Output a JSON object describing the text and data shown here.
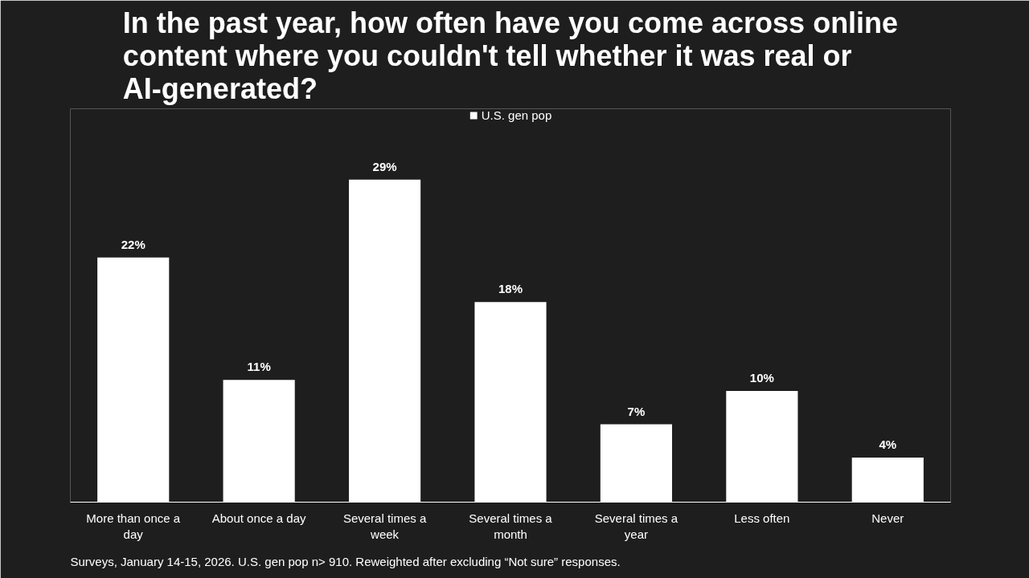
{
  "chart_data": {
    "type": "bar",
    "title": "In the past year, how often have you come across online content where you couldn't tell whether it was real or AI-generated?",
    "categories": [
      "More than once a day",
      "About once a day",
      "Several times a week",
      "Several times a month",
      "Several times a year",
      "Less often",
      "Never"
    ],
    "series": [
      {
        "name": "U.S. gen pop",
        "color": "#ffffff",
        "values": [
          22,
          11,
          29,
          18,
          7,
          10,
          4
        ],
        "value_labels": [
          "22%",
          "11%",
          "29%",
          "18%",
          "7%",
          "10%",
          "4%"
        ]
      }
    ],
    "legend": "top",
    "annotations": [
      "Surveys, January 14-15, 2026. U.S. gen pop n> 910. Reweighted after excluding “Not sure” responses."
    ]
  }
}
